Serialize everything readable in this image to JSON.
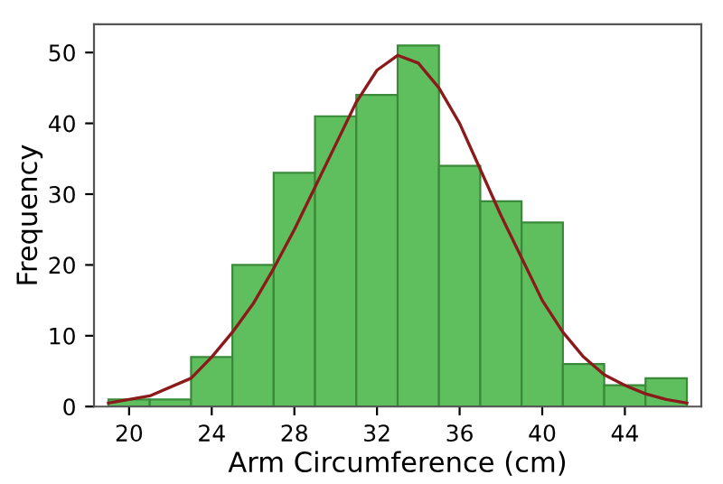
{
  "chart_data": {
    "type": "histogram",
    "xlabel": "Arm Circumference (cm)",
    "ylabel": "Frequency",
    "bins": [
      19,
      21,
      23,
      25,
      27,
      29,
      31,
      33,
      35,
      37,
      39,
      41,
      43,
      45,
      47
    ],
    "values": [
      1,
      1,
      7,
      20,
      33,
      41,
      44,
      51,
      34,
      29,
      26,
      6,
      3,
      4
    ],
    "color": "#5fbf5f",
    "series": [
      {
        "type": "line",
        "color": "#8b1a1a",
        "x": [
          19,
          21,
          23,
          24,
          25,
          26,
          27,
          28,
          29,
          30,
          31,
          32,
          33,
          34,
          35,
          36,
          37,
          38,
          39,
          40,
          41,
          42,
          43,
          44,
          45,
          46,
          47
        ],
        "values": [
          0.5,
          1.5,
          4,
          7,
          10.5,
          14.5,
          19.5,
          25,
          31,
          37,
          43,
          47.5,
          49.6,
          48.5,
          45,
          40,
          33.5,
          27,
          21,
          15,
          10.5,
          7,
          4.5,
          3,
          1.8,
          1,
          0.5
        ]
      }
    ],
    "xlim": [
      18.3,
      47.7
    ],
    "ylim": [
      0,
      54
    ],
    "xticks": [
      20,
      24,
      28,
      32,
      36,
      40,
      44
    ],
    "yticks": [
      0,
      10,
      20,
      30,
      40,
      50
    ],
    "grid": false
  }
}
